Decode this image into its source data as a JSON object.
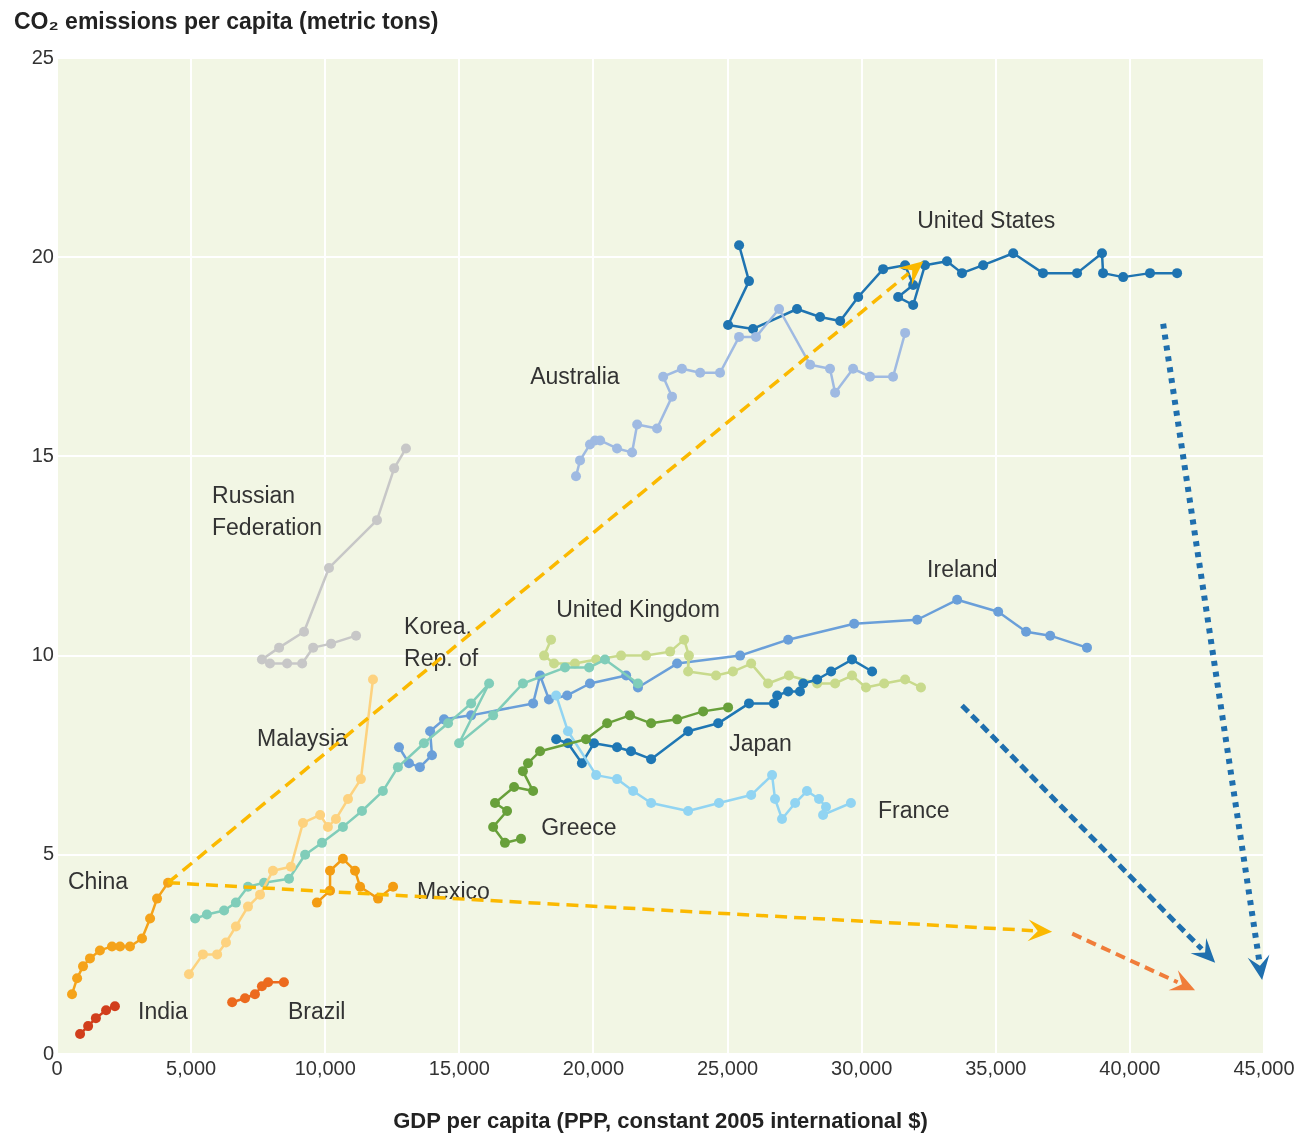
{
  "chart_data": {
    "type": "line",
    "ylabel": "CO₂ emissions per capita (metric tons)",
    "xlabel": "GDP per capita (PPP, constant 2005 international $)",
    "xlim": [
      0,
      45000
    ],
    "ylim": [
      0,
      25
    ],
    "xticks": [
      0,
      {
        "value": 5000,
        "label": "5,000"
      },
      {
        "value": 10000,
        "label": "10,000"
      },
      {
        "value": 15000,
        "label": "15,000"
      },
      {
        "value": 20000,
        "label": "20,000"
      },
      {
        "value": 25000,
        "label": "25,000"
      },
      {
        "value": 30000,
        "label": "30,000"
      },
      {
        "value": 35000,
        "label": "35,000"
      },
      {
        "value": 40000,
        "label": "40,000"
      },
      {
        "value": 45000,
        "label": "45,000"
      }
    ],
    "yticks": [
      0,
      5,
      10,
      15,
      20,
      25
    ],
    "grid": true,
    "legend": false,
    "marker": "circle",
    "series": [
      {
        "name": "China",
        "color": "#f5a31a",
        "x": [
          560,
          750,
          970,
          1230,
          1600,
          2050,
          2350,
          2720,
          3170,
          3470,
          3730,
          4140
        ],
        "values": [
          1.5,
          1.9,
          2.2,
          2.4,
          2.6,
          2.7,
          2.7,
          2.7,
          2.9,
          3.4,
          3.9,
          4.3
        ]
      },
      {
        "name": "India",
        "color": "#d13e1c",
        "x": [
          860,
          1160,
          1450,
          1830,
          2160
        ],
        "values": [
          0.5,
          0.7,
          0.9,
          1.1,
          1.2
        ]
      },
      {
        "name": "Brazil",
        "color": "#ec6a1e",
        "x": [
          6530,
          7010,
          7380,
          7640,
          7870,
          8460
        ],
        "values": [
          1.3,
          1.4,
          1.5,
          1.7,
          1.8,
          1.8
        ]
      },
      {
        "name": "Malaysia",
        "color": "#fdd27f",
        "x": [
          4920,
          5440,
          5970,
          6300,
          6670,
          7120,
          7570,
          8050,
          8720,
          9170,
          9810,
          10100,
          10400,
          10850,
          11330,
          11780
        ],
        "values": [
          2.0,
          2.5,
          2.5,
          2.8,
          3.2,
          3.7,
          4.0,
          4.6,
          4.7,
          5.8,
          6.0,
          5.7,
          5.9,
          6.4,
          6.9,
          9.4
        ]
      },
      {
        "name": "Mexico",
        "color": "#f39c12",
        "x": [
          9690,
          10180,
          10180,
          10660,
          11110,
          11300,
          11970,
          12530
        ],
        "values": [
          3.8,
          4.1,
          4.6,
          4.9,
          4.6,
          4.2,
          3.9,
          4.2
        ]
      },
      {
        "name": "Korea, Rep. of",
        "color": "#80cdb9",
        "x": [
          5150,
          5590,
          6230,
          6670,
          7120,
          7720,
          8650,
          9250,
          9880,
          10660,
          11370,
          12150,
          12710,
          13680,
          14580,
          15440,
          16110,
          14990,
          16260,
          17370,
          18940,
          19840,
          20430,
          21660
        ],
        "values": [
          3.4,
          3.5,
          3.6,
          3.8,
          4.2,
          4.3,
          4.4,
          5.0,
          5.3,
          5.7,
          6.1,
          6.6,
          7.2,
          7.8,
          8.3,
          8.8,
          9.3,
          7.8,
          8.5,
          9.3,
          9.7,
          9.7,
          9.9,
          9.3
        ]
      },
      {
        "name": "Russian Federation",
        "color": "#c7c7c7",
        "x": [
          13010,
          12570,
          11930,
          10140,
          9210,
          8280,
          7640,
          7940,
          8580,
          9140,
          9550,
          10220,
          11150
        ],
        "values": [
          15.2,
          14.7,
          13.4,
          12.2,
          10.6,
          10.2,
          9.9,
          9.8,
          9.8,
          9.8,
          10.2,
          10.3,
          10.5
        ]
      },
      {
        "name": "Greece",
        "color": "#68a03a",
        "x": [
          17300,
          16700,
          16260,
          16780,
          16330,
          17040,
          17750,
          17370,
          17560,
          18010,
          19720,
          20510,
          21360,
          22150,
          23120,
          24090,
          25020
        ],
        "values": [
          5.4,
          5.3,
          5.7,
          6.1,
          6.3,
          6.7,
          6.6,
          7.1,
          7.3,
          7.6,
          7.9,
          8.3,
          8.5,
          8.3,
          8.4,
          8.6,
          8.7
        ]
      },
      {
        "name": "France",
        "color": "#91d4f2",
        "x": [
          18610,
          19050,
          20100,
          20880,
          21480,
          22150,
          23530,
          24680,
          25880,
          26660,
          26770,
          27030,
          27520,
          27960,
          28410,
          28670,
          28560,
          29600
        ],
        "values": [
          9.0,
          8.1,
          7.0,
          6.9,
          6.6,
          6.3,
          6.1,
          6.3,
          6.5,
          7.0,
          6.4,
          5.9,
          6.3,
          6.6,
          6.4,
          6.2,
          6.0,
          6.3
        ]
      },
      {
        "name": "Japan",
        "color": "#1f77b4",
        "x": [
          18610,
          19050,
          19570,
          20020,
          20880,
          21400,
          22150,
          23530,
          24650,
          25800,
          26730,
          26850,
          27260,
          27700,
          27820,
          28340,
          28860,
          29640,
          30390
        ],
        "values": [
          7.9,
          7.8,
          7.3,
          7.8,
          7.7,
          7.6,
          7.4,
          8.1,
          8.3,
          8.8,
          8.8,
          9.0,
          9.1,
          9.1,
          9.3,
          9.4,
          9.6,
          9.9,
          9.6
        ]
      },
      {
        "name": "United Kingdom",
        "color": "#c8da8c",
        "x": [
          18420,
          18160,
          18530,
          19310,
          20100,
          21030,
          21960,
          22860,
          23380,
          23560,
          23530,
          24570,
          25200,
          25880,
          26510,
          27290,
          28340,
          29010,
          29640,
          30160,
          30840,
          31620,
          32210
        ],
        "values": [
          10.4,
          10.0,
          9.8,
          9.8,
          9.9,
          10.0,
          10.0,
          10.1,
          10.4,
          10.0,
          9.6,
          9.5,
          9.6,
          9.8,
          9.3,
          9.5,
          9.3,
          9.3,
          9.5,
          9.2,
          9.3,
          9.4,
          9.2
        ]
      },
      {
        "name": "Ireland",
        "color": "#6a9fd9",
        "x": [
          12750,
          13120,
          13530,
          13980,
          13910,
          14430,
          15440,
          17750,
          18010,
          18340,
          19020,
          19870,
          21220,
          21660,
          23120,
          25470,
          27260,
          29720,
          32070,
          33560,
          35090,
          36130,
          37030,
          38400
        ],
        "values": [
          7.7,
          7.3,
          7.2,
          7.5,
          8.1,
          8.4,
          8.5,
          8.8,
          9.5,
          8.9,
          9.0,
          9.3,
          9.5,
          9.2,
          9.8,
          10.0,
          10.4,
          10.8,
          10.9,
          11.4,
          11.1,
          10.6,
          10.5,
          10.2
        ]
      },
      {
        "name": "Australia",
        "color": "#9fbae2",
        "x": [
          19350,
          19500,
          19870,
          20060,
          20250,
          20880,
          21440,
          21630,
          22370,
          22930,
          22600,
          23300,
          23980,
          24720,
          25430,
          26060,
          26920,
          28080,
          28820,
          29010,
          29680,
          30310,
          31170,
          31620
        ],
        "values": [
          14.5,
          14.9,
          15.3,
          15.4,
          15.4,
          15.2,
          15.1,
          15.8,
          15.7,
          16.5,
          17.0,
          17.2,
          17.1,
          17.1,
          18.0,
          18.0,
          18.7,
          17.3,
          17.2,
          16.6,
          17.2,
          17.0,
          17.0,
          18.1
        ]
      },
      {
        "name": "United States",
        "color": "#1f74b1",
        "x": [
          25430,
          25800,
          25020,
          25950,
          27590,
          28450,
          29200,
          29870,
          30800,
          31620,
          31920,
          31360,
          31920,
          32360,
          33180,
          33740,
          34530,
          35650,
          36760,
          38030,
          38960,
          39000,
          39750,
          40750,
          41760
        ],
        "values": [
          20.3,
          19.4,
          18.3,
          18.2,
          18.7,
          18.5,
          18.4,
          19.0,
          19.7,
          19.8,
          19.3,
          19.0,
          18.8,
          19.8,
          19.9,
          19.6,
          19.8,
          20.1,
          19.6,
          19.6,
          20.1,
          19.6,
          19.5,
          19.6,
          19.6
        ]
      }
    ]
  }
}
